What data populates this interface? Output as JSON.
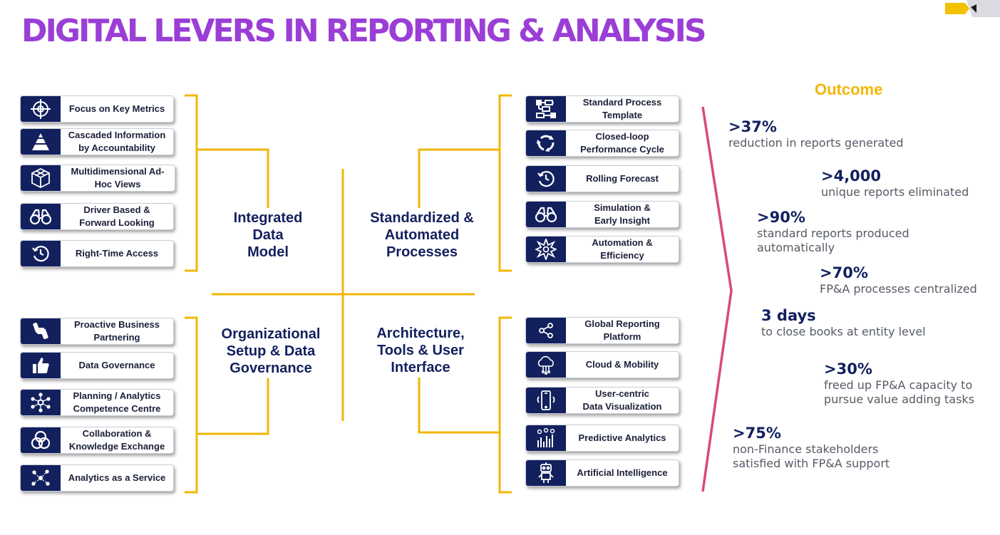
{
  "title": "DIGITAL LEVERS IN REPORTING & ANALYSIS",
  "colors": {
    "title": "#9b3ed6",
    "navy": "#13205e",
    "gold": "#f2b705",
    "chevron": "#d84a7c"
  },
  "quadrants": {
    "q1": "Integrated\nData\nModel",
    "q2": "Standardized &\nAutomated\nProcesses",
    "q3": "Organizational\nSetup & Data\nGovernance",
    "q4": "Architecture,\nTools & User\nInterface"
  },
  "levers_left_top": [
    {
      "label": "Focus on Key Metrics",
      "icon": "target-icon"
    },
    {
      "label": "Cascaded Information\nby Accountability",
      "icon": "pyramid-icon"
    },
    {
      "label": "Multidimensional Ad-\nHoc Views",
      "icon": "cube-icon"
    },
    {
      "label": "Driver Based &\nForward Looking",
      "icon": "binoculars-icon"
    },
    {
      "label": "Right-Time Access",
      "icon": "clock-icon"
    }
  ],
  "levers_left_bottom": [
    {
      "label": "Proactive Business\nPartnering",
      "icon": "handshake-icon"
    },
    {
      "label": "Data Governance",
      "icon": "thumbs-up-icon"
    },
    {
      "label": "Planning  / Analytics\nCompetence Centre",
      "icon": "network-icon"
    },
    {
      "label": "Collaboration &\nKnowledge Exchange",
      "icon": "venn-icon"
    },
    {
      "label": "Analytics as a Service",
      "icon": "hub-icon"
    }
  ],
  "levers_right_top": [
    {
      "label": "Standard Process\nTemplate",
      "icon": "flowchart-icon"
    },
    {
      "label": "Closed-loop\nPerformance Cycle",
      "icon": "cycle-icon"
    },
    {
      "label": "Rolling Forecast",
      "icon": "clock-icon"
    },
    {
      "label": "Simulation &\nEarly Insight",
      "icon": "binoculars-icon"
    },
    {
      "label": "Automation &\nEfficiency",
      "icon": "burst-icon"
    }
  ],
  "levers_right_bottom": [
    {
      "label": "Global Reporting\nPlatform",
      "icon": "share-icon"
    },
    {
      "label": "Cloud & Mobility",
      "icon": "cloud-icon"
    },
    {
      "label": "User-centric\nData Visualization",
      "icon": "phone-icon"
    },
    {
      "label": "Predictive Analytics",
      "icon": "chart-icon"
    },
    {
      "label": "Artificial Intelligence",
      "icon": "robot-icon"
    }
  ],
  "outcome": {
    "title": "Outcome",
    "stats": [
      {
        "value": ">37%",
        "desc": "reduction in reports generated"
      },
      {
        "value": ">4,000",
        "desc": "unique reports eliminated"
      },
      {
        "value": ">90%",
        "desc": "standard reports produced\nautomatically"
      },
      {
        "value": ">70%",
        "desc": "FP&A processes centralized"
      },
      {
        "value": "3 days",
        "desc": "to close books at entity level"
      },
      {
        "value": ">30%",
        "desc": "freed up FP&A capacity to\npursue value adding tasks"
      },
      {
        "value": ">75%",
        "desc": "non-Finance stakeholders\nsatisfied with FP&A support"
      }
    ]
  }
}
